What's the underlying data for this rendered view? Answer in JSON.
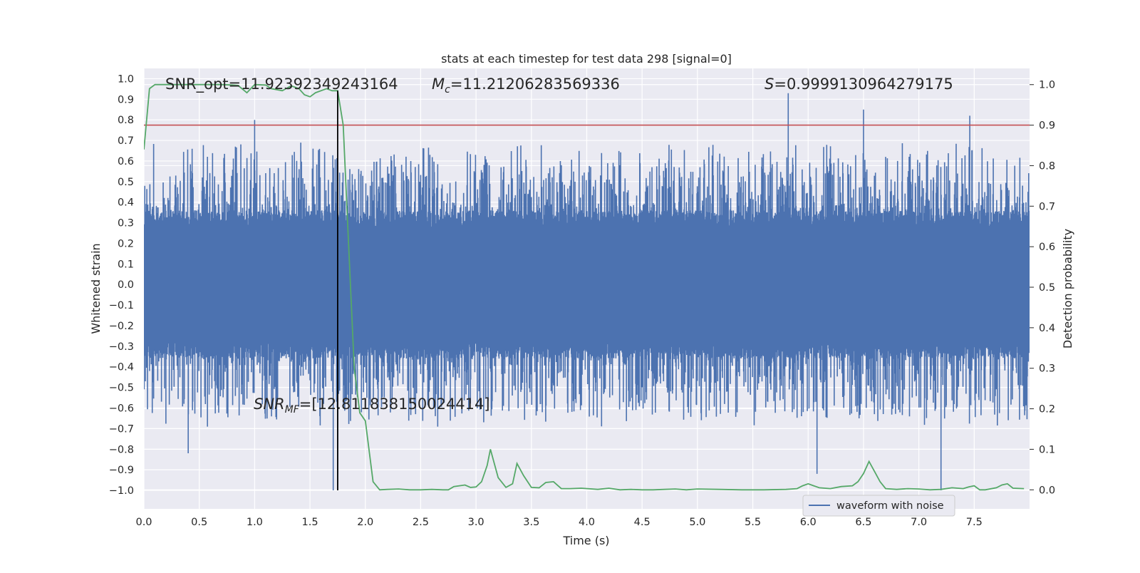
{
  "chart_data": {
    "type": "line",
    "title": "stats at each timestep for test data 298 [signal=0]",
    "xlabel": "Time (s)",
    "ylabel_left": "Whitened strain",
    "ylabel_right": "Detection probability",
    "xlim": [
      0,
      8
    ],
    "ylim_left": [
      -1.09,
      1.05
    ],
    "ylim_right": [
      -0.047,
      1.04
    ],
    "x_ticks": [
      "0.0",
      "0.5",
      "1.0",
      "1.5",
      "2.0",
      "2.5",
      "3.0",
      "3.5",
      "4.0",
      "4.5",
      "5.0",
      "5.5",
      "6.0",
      "6.5",
      "7.0",
      "7.5"
    ],
    "y_left_ticks": [
      "1.0",
      "0.9",
      "0.8",
      "0.7",
      "0.6",
      "0.5",
      "0.4",
      "0.3",
      "0.2",
      "0.1",
      "0.0",
      "−0.1",
      "−0.2",
      "−0.3",
      "−0.4",
      "−0.5",
      "−0.6",
      "−0.7",
      "−0.8",
      "−0.9",
      "−1.0"
    ],
    "y_right_ticks": [
      "0.0",
      "0.1",
      "0.2",
      "0.3",
      "0.4",
      "0.5",
      "0.6",
      "0.7",
      "0.8",
      "0.9",
      "1.0"
    ],
    "annotations": {
      "snr_opt": "SNR_opt=11.92392349243164",
      "mc_symbol": "M",
      "mc_sub": "c",
      "mc_value": "=11.21206283569336",
      "s_symbol": "S",
      "s_value": "=0.9999130964279175",
      "snr_mf_symbol": "SNR",
      "snr_mf_sub": "MF",
      "snr_mf_value": "=[12.811838150024414]"
    },
    "threshold": 0.9,
    "marker_time": 1.75,
    "legend": {
      "entries": [
        "waveform with noise"
      ],
      "position": "lower-right"
    },
    "series": [
      {
        "name": "waveform with noise",
        "color": "#4c72b0",
        "axis": "left",
        "core_amplitude": 0.36,
        "peak_amplitude": 0.7,
        "notable_spikes": [
          {
            "x": 1.71,
            "y": -1.0
          },
          {
            "x": 1.75,
            "y": -1.0
          },
          {
            "x": 5.82,
            "y": 0.93
          },
          {
            "x": 6.08,
            "y": -0.92
          },
          {
            "x": 7.2,
            "y": -1.0
          },
          {
            "x": 0.4,
            "y": -0.82
          },
          {
            "x": 1.0,
            "y": 0.8
          },
          {
            "x": 6.5,
            "y": 0.85
          },
          {
            "x": 7.46,
            "y": 0.82
          }
        ]
      },
      {
        "name": "detection probability",
        "color": "#55a868",
        "axis": "right",
        "x": [
          0.0,
          0.05,
          0.1,
          0.2,
          0.3,
          0.4,
          0.5,
          0.6,
          0.7,
          0.8,
          0.85,
          0.93,
          1.0,
          1.1,
          1.15,
          1.25,
          1.33,
          1.4,
          1.45,
          1.5,
          1.55,
          1.65,
          1.7,
          1.75,
          1.8,
          1.85,
          1.9,
          1.95,
          2.0,
          2.07,
          2.13,
          2.2,
          2.3,
          2.4,
          2.5,
          2.6,
          2.7,
          2.75,
          2.8,
          2.9,
          2.95,
          3.0,
          3.05,
          3.1,
          3.13,
          3.2,
          3.27,
          3.33,
          3.37,
          3.43,
          3.5,
          3.57,
          3.63,
          3.7,
          3.77,
          3.85,
          3.95,
          4.1,
          4.2,
          4.3,
          4.4,
          4.5,
          4.6,
          4.7,
          4.8,
          4.9,
          5.0,
          5.2,
          5.4,
          5.6,
          5.8,
          5.9,
          5.95,
          6.0,
          6.05,
          6.1,
          6.2,
          6.3,
          6.4,
          6.45,
          6.5,
          6.55,
          6.6,
          6.65,
          6.7,
          6.8,
          6.9,
          7.0,
          7.1,
          7.2,
          7.3,
          7.4,
          7.45,
          7.5,
          7.55,
          7.6,
          7.7,
          7.75,
          7.8,
          7.85,
          7.95
        ],
        "y": [
          0.84,
          0.99,
          1.0,
          1.0,
          1.0,
          1.0,
          1.0,
          1.0,
          1.0,
          0.999,
          0.998,
          0.98,
          1.0,
          0.999,
          0.99,
          0.985,
          0.997,
          0.99,
          0.975,
          0.97,
          0.98,
          0.99,
          0.985,
          0.985,
          0.9,
          0.6,
          0.3,
          0.19,
          0.17,
          0.02,
          0.0,
          0.001,
          0.002,
          0.0,
          0.0,
          0.001,
          0.0,
          0.0,
          0.008,
          0.012,
          0.006,
          0.007,
          0.02,
          0.06,
          0.1,
          0.03,
          0.006,
          0.015,
          0.065,
          0.035,
          0.006,
          0.005,
          0.018,
          0.02,
          0.003,
          0.003,
          0.004,
          0.001,
          0.004,
          0.0,
          0.001,
          0.0,
          0.0,
          0.001,
          0.002,
          0.0,
          0.002,
          0.001,
          0.0,
          0.0,
          0.001,
          0.003,
          0.01,
          0.015,
          0.01,
          0.005,
          0.003,
          0.008,
          0.01,
          0.02,
          0.04,
          0.07,
          0.045,
          0.02,
          0.003,
          0.001,
          0.003,
          0.002,
          0.0,
          0.001,
          0.005,
          0.003,
          0.007,
          0.01,
          0.0,
          0.0,
          0.005,
          0.012,
          0.015,
          0.004,
          0.003
        ]
      },
      {
        "name": "threshold",
        "color": "#c44e52",
        "axis": "right"
      }
    ]
  }
}
